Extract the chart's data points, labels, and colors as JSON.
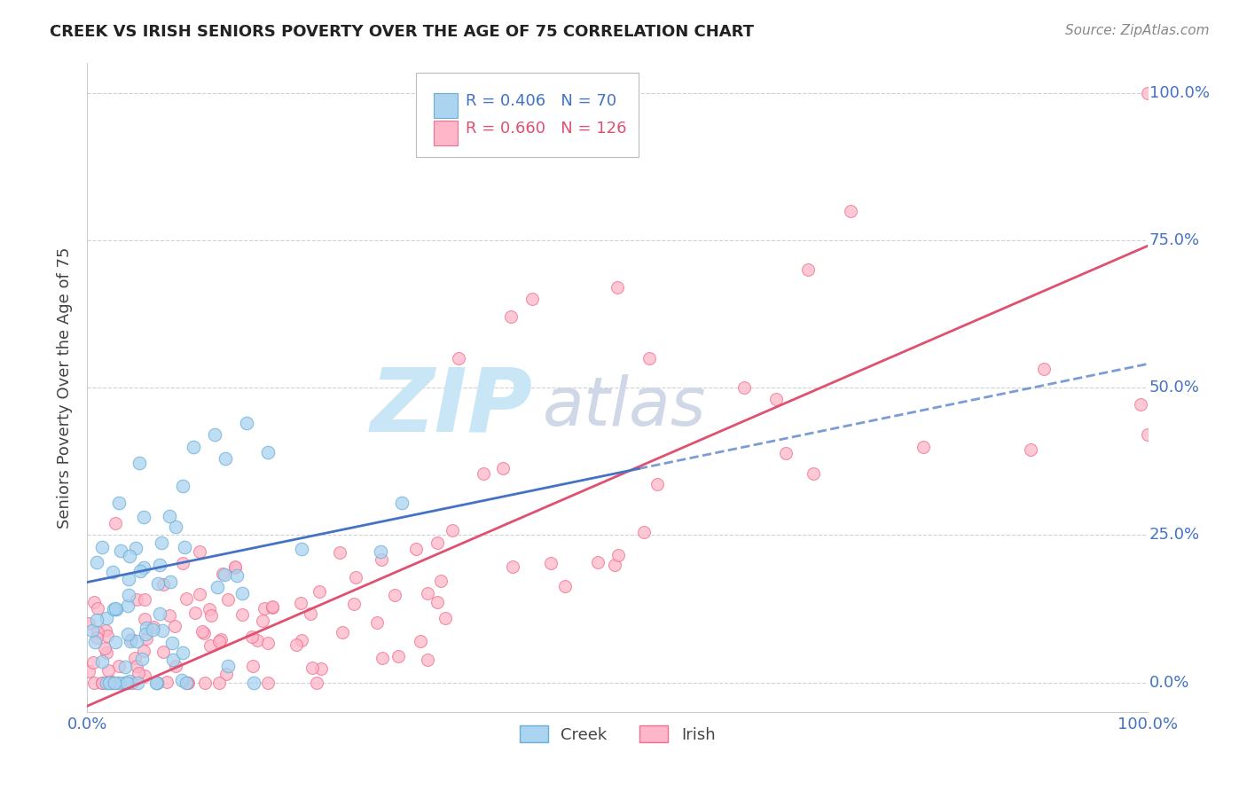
{
  "title": "CREEK VS IRISH SENIORS POVERTY OVER THE AGE OF 75 CORRELATION CHART",
  "source_text": "Source: ZipAtlas.com",
  "ylabel": "Seniors Poverty Over the Age of 75",
  "xticklabels": [
    "0.0%",
    "",
    "",
    "",
    "100.0%"
  ],
  "yticklabels_right": [
    "100.0%",
    "75.0%",
    "50.0%",
    "25.0%",
    "0.0%"
  ],
  "xlim": [
    0,
    1
  ],
  "ylim": [
    -0.05,
    1.05
  ],
  "creek_R": 0.406,
  "creek_N": 70,
  "irish_R": 0.66,
  "irish_N": 126,
  "title_color": "#222222",
  "creek_color": "#aad4f0",
  "irish_color": "#ffb6c8",
  "creek_edge": "#6aafd8",
  "irish_edge": "#f07090",
  "creek_line_color": "#4472c4",
  "irish_line_color": "#e05070",
  "ytick_color": "#4472c4",
  "xtick_color": "#4472c4",
  "watermark_zip_color": "#c8e6f5",
  "watermark_atlas_color": "#d0d8e8",
  "background_color": "#ffffff",
  "grid_color": "#cccccc",
  "legend_text_color_creek": "#4472c4",
  "legend_text_color_irish": "#e05070"
}
